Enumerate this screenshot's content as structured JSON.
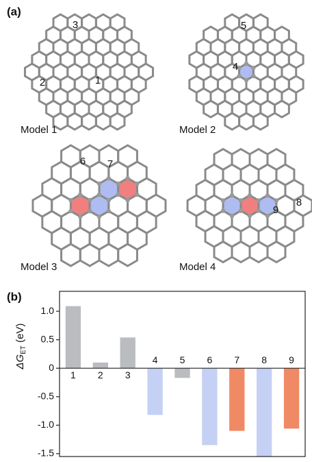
{
  "panels": [
    "(a)",
    "(b)"
  ],
  "models": [
    {
      "label": "Model 1",
      "sites": [
        "1",
        "2",
        "3"
      ]
    },
    {
      "label": "Model 2",
      "sites": [
        "4",
        "5"
      ]
    },
    {
      "label": "Model 3",
      "sites": [
        "6",
        "7"
      ]
    },
    {
      "label": "Model 4",
      "sites": [
        "8",
        "9"
      ]
    }
  ],
  "chart_data": {
    "type": "bar",
    "categories": [
      "1",
      "2",
      "3",
      "4",
      "5",
      "6",
      "7",
      "8",
      "9"
    ],
    "values": [
      1.09,
      0.1,
      0.54,
      -0.82,
      -0.17,
      -1.35,
      -1.1,
      -1.55,
      -1.06
    ],
    "colors": [
      "#bbbcc0",
      "#bbbcc0",
      "#bbbcc0",
      "#c5d0f5",
      "#bbbcc0",
      "#c5d0f5",
      "#f08a64",
      "#c5d0f5",
      "#f08a64"
    ],
    "ylabel_parts": [
      "ΔG",
      "ET",
      " (eV)"
    ],
    "ylim": [
      -1.55,
      1.35
    ],
    "yticks": [
      {
        "value": 1,
        "label": "1.0"
      },
      0.5,
      0,
      -0.5,
      {
        "value": -1,
        "label": "-1.0"
      },
      -1.5
    ]
  }
}
